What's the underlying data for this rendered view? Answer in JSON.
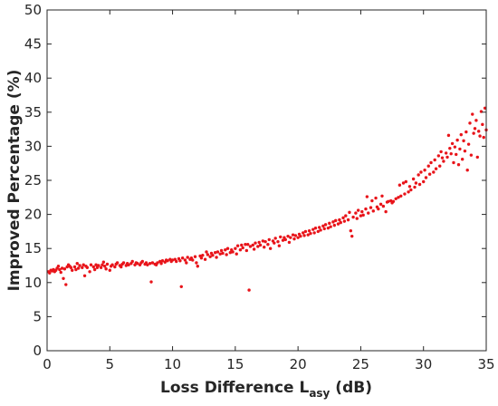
{
  "chart_data": {
    "type": "scatter",
    "xlabel_main": "Loss Difference L",
    "xlabel_sub": "asy",
    "xlabel_unit": " (dB)",
    "ylabel": "Improved Percentage (%)",
    "xlim": [
      0,
      35
    ],
    "ylim": [
      0,
      50
    ],
    "xticks": [
      0,
      5,
      10,
      15,
      20,
      25,
      30,
      35
    ],
    "yticks": [
      0,
      5,
      10,
      15,
      20,
      25,
      30,
      35,
      40,
      45,
      50
    ],
    "grid": false,
    "marker_color": "#e8141a",
    "series": [
      {
        "values": [
          [
            0.1,
            11.6
          ],
          [
            0.2,
            11.4
          ],
          [
            0.3,
            11.8
          ],
          [
            0.4,
            11.7
          ],
          [
            0.5,
            11.9
          ],
          [
            0.6,
            11.6
          ],
          [
            0.7,
            11.8
          ],
          [
            0.8,
            12.1
          ],
          [
            0.9,
            12.4
          ],
          [
            1.0,
            11.9
          ],
          [
            1.1,
            11.5
          ],
          [
            1.2,
            12.1
          ],
          [
            1.3,
            10.6
          ],
          [
            1.4,
            12.0
          ],
          [
            1.5,
            9.7
          ],
          [
            1.6,
            12.3
          ],
          [
            1.7,
            12.6
          ],
          [
            1.8,
            12.4
          ],
          [
            1.9,
            12.2
          ],
          [
            2.0,
            11.8
          ],
          [
            2.2,
            12.3
          ],
          [
            2.3,
            11.9
          ],
          [
            2.4,
            12.8
          ],
          [
            2.5,
            12.1
          ],
          [
            2.6,
            12.5
          ],
          [
            2.8,
            12.2
          ],
          [
            2.9,
            12.6
          ],
          [
            3.0,
            11.0
          ],
          [
            3.1,
            12.4
          ],
          [
            3.2,
            12.2
          ],
          [
            3.4,
            11.6
          ],
          [
            3.5,
            12.6
          ],
          [
            3.7,
            12.3
          ],
          [
            3.8,
            11.9
          ],
          [
            3.9,
            12.6
          ],
          [
            4.0,
            12.2
          ],
          [
            4.1,
            12.5
          ],
          [
            4.3,
            12.2
          ],
          [
            4.4,
            12.6
          ],
          [
            4.5,
            13.0
          ],
          [
            4.6,
            12.4
          ],
          [
            4.7,
            12.0
          ],
          [
            4.8,
            12.7
          ],
          [
            5.0,
            11.8
          ],
          [
            5.1,
            12.4
          ],
          [
            5.2,
            12.6
          ],
          [
            5.4,
            12.3
          ],
          [
            5.5,
            12.7
          ],
          [
            5.6,
            12.9
          ],
          [
            5.8,
            12.5
          ],
          [
            5.9,
            12.3
          ],
          [
            6.0,
            12.7
          ],
          [
            6.1,
            12.9
          ],
          [
            6.3,
            12.5
          ],
          [
            6.4,
            12.8
          ],
          [
            6.5,
            12.6
          ],
          [
            6.7,
            12.8
          ],
          [
            6.8,
            13.1
          ],
          [
            7.0,
            12.6
          ],
          [
            7.1,
            12.9
          ],
          [
            7.2,
            12.8
          ],
          [
            7.4,
            12.6
          ],
          [
            7.5,
            12.9
          ],
          [
            7.6,
            13.1
          ],
          [
            7.8,
            12.7
          ],
          [
            7.9,
            12.9
          ],
          [
            8.0,
            12.6
          ],
          [
            8.2,
            12.8
          ],
          [
            8.3,
            10.1
          ],
          [
            8.4,
            12.9
          ],
          [
            8.6,
            12.7
          ],
          [
            8.7,
            12.6
          ],
          [
            8.8,
            12.9
          ],
          [
            9.0,
            13.1
          ],
          [
            9.1,
            12.8
          ],
          [
            9.2,
            13.2
          ],
          [
            9.4,
            13.0
          ],
          [
            9.5,
            13.3
          ],
          [
            9.6,
            13.2
          ],
          [
            9.8,
            13.4
          ],
          [
            9.9,
            13.1
          ],
          [
            10.0,
            13.3
          ],
          [
            10.2,
            13.4
          ],
          [
            10.3,
            13.1
          ],
          [
            10.5,
            13.5
          ],
          [
            10.6,
            13.2
          ],
          [
            10.7,
            9.4
          ],
          [
            10.8,
            13.6
          ],
          [
            11.0,
            13.3
          ],
          [
            11.1,
            12.9
          ],
          [
            11.2,
            13.7
          ],
          [
            11.4,
            13.4
          ],
          [
            11.5,
            13.6
          ],
          [
            11.6,
            13.3
          ],
          [
            11.8,
            13.8
          ],
          [
            11.9,
            12.9
          ],
          [
            12.0,
            12.4
          ],
          [
            12.2,
            13.9
          ],
          [
            12.3,
            13.6
          ],
          [
            12.4,
            14.0
          ],
          [
            12.6,
            13.4
          ],
          [
            12.7,
            14.5
          ],
          [
            12.8,
            14.1
          ],
          [
            13.0,
            13.8
          ],
          [
            13.1,
            14.3
          ],
          [
            13.2,
            14.0
          ],
          [
            13.4,
            14.4
          ],
          [
            13.5,
            13.7
          ],
          [
            13.6,
            14.5
          ],
          [
            13.8,
            14.2
          ],
          [
            13.9,
            14.7
          ],
          [
            14.0,
            14.3
          ],
          [
            14.2,
            14.8
          ],
          [
            14.3,
            14.1
          ],
          [
            14.4,
            15.0
          ],
          [
            14.6,
            14.4
          ],
          [
            14.7,
            14.8
          ],
          [
            14.8,
            14.5
          ],
          [
            15.0,
            15.0
          ],
          [
            15.1,
            14.2
          ],
          [
            15.2,
            15.4
          ],
          [
            15.4,
            14.8
          ],
          [
            15.5,
            15.5
          ],
          [
            15.6,
            15.1
          ],
          [
            15.8,
            15.6
          ],
          [
            15.9,
            14.7
          ],
          [
            16.0,
            15.6
          ],
          [
            16.1,
            8.9
          ],
          [
            16.2,
            15.3
          ],
          [
            16.4,
            15.5
          ],
          [
            16.5,
            14.9
          ],
          [
            16.6,
            15.8
          ],
          [
            16.8,
            15.3
          ],
          [
            16.9,
            15.9
          ],
          [
            17.0,
            15.5
          ],
          [
            17.2,
            16.1
          ],
          [
            17.3,
            15.2
          ],
          [
            17.4,
            16.0
          ],
          [
            17.6,
            15.6
          ],
          [
            17.7,
            16.3
          ],
          [
            17.8,
            15.0
          ],
          [
            18.0,
            16.1
          ],
          [
            18.1,
            15.8
          ],
          [
            18.2,
            16.5
          ],
          [
            18.4,
            16.0
          ],
          [
            18.5,
            15.4
          ],
          [
            18.6,
            16.7
          ],
          [
            18.8,
            16.2
          ],
          [
            18.9,
            16.6
          ],
          [
            19.0,
            16.3
          ],
          [
            19.2,
            16.8
          ],
          [
            19.3,
            15.9
          ],
          [
            19.4,
            16.6
          ],
          [
            19.6,
            17.0
          ],
          [
            19.7,
            16.4
          ],
          [
            19.8,
            16.9
          ],
          [
            20.0,
            16.6
          ],
          [
            20.1,
            17.1
          ],
          [
            20.2,
            16.8
          ],
          [
            20.4,
            17.3
          ],
          [
            20.5,
            16.9
          ],
          [
            20.6,
            17.5
          ],
          [
            20.8,
            17.0
          ],
          [
            20.9,
            17.6
          ],
          [
            21.0,
            17.2
          ],
          [
            21.2,
            17.8
          ],
          [
            21.3,
            17.3
          ],
          [
            21.4,
            18.0
          ],
          [
            21.6,
            17.5
          ],
          [
            21.7,
            18.1
          ],
          [
            21.8,
            17.7
          ],
          [
            22.0,
            18.3
          ],
          [
            22.1,
            17.9
          ],
          [
            22.2,
            18.5
          ],
          [
            22.4,
            18.0
          ],
          [
            22.5,
            18.7
          ],
          [
            22.6,
            18.2
          ],
          [
            22.8,
            18.9
          ],
          [
            22.9,
            18.4
          ],
          [
            23.0,
            19.1
          ],
          [
            23.2,
            18.6
          ],
          [
            23.3,
            19.2
          ],
          [
            23.4,
            18.8
          ],
          [
            23.6,
            19.5
          ],
          [
            23.7,
            19.0
          ],
          [
            23.8,
            19.8
          ],
          [
            24.0,
            19.2
          ],
          [
            24.1,
            20.3
          ],
          [
            24.2,
            17.6
          ],
          [
            24.3,
            16.8
          ],
          [
            24.4,
            19.6
          ],
          [
            24.6,
            20.2
          ],
          [
            24.7,
            19.4
          ],
          [
            24.8,
            20.6
          ],
          [
            25.0,
            19.8
          ],
          [
            25.1,
            20.4
          ],
          [
            25.2,
            19.9
          ],
          [
            25.4,
            20.8
          ],
          [
            25.5,
            22.6
          ],
          [
            25.6,
            20.2
          ],
          [
            25.8,
            21.0
          ],
          [
            25.9,
            22.0
          ],
          [
            26.0,
            20.5
          ],
          [
            26.2,
            22.4
          ],
          [
            26.3,
            21.1
          ],
          [
            26.4,
            20.8
          ],
          [
            26.6,
            21.5
          ],
          [
            26.7,
            22.7
          ],
          [
            26.8,
            21.2
          ],
          [
            27.0,
            20.4
          ],
          [
            27.1,
            21.8
          ],
          [
            27.2,
            21.9
          ],
          [
            27.4,
            22.0
          ],
          [
            27.5,
            21.7
          ],
          [
            27.6,
            21.9
          ],
          [
            27.8,
            22.3
          ],
          [
            28.0,
            22.5
          ],
          [
            28.1,
            24.3
          ],
          [
            28.2,
            22.7
          ],
          [
            28.4,
            24.6
          ],
          [
            28.5,
            23.0
          ],
          [
            28.6,
            24.8
          ],
          [
            28.8,
            23.3
          ],
          [
            28.9,
            24.1
          ],
          [
            29.0,
            23.6
          ],
          [
            29.2,
            25.2
          ],
          [
            29.3,
            24.0
          ],
          [
            29.4,
            24.6
          ],
          [
            29.6,
            25.8
          ],
          [
            29.7,
            24.4
          ],
          [
            29.8,
            26.2
          ],
          [
            30.0,
            24.8
          ],
          [
            30.1,
            26.5
          ],
          [
            30.2,
            25.4
          ],
          [
            30.4,
            27.1
          ],
          [
            30.5,
            25.9
          ],
          [
            30.6,
            27.6
          ],
          [
            30.8,
            26.2
          ],
          [
            30.9,
            28.0
          ],
          [
            31.0,
            26.7
          ],
          [
            31.2,
            28.6
          ],
          [
            31.3,
            27.1
          ],
          [
            31.4,
            29.2
          ],
          [
            31.5,
            28.3
          ],
          [
            31.6,
            27.8
          ],
          [
            31.8,
            29.0
          ],
          [
            31.9,
            28.4
          ],
          [
            32.0,
            31.6
          ],
          [
            32.1,
            29.7
          ],
          [
            32.2,
            28.9
          ],
          [
            32.3,
            30.4
          ],
          [
            32.4,
            27.6
          ],
          [
            32.5,
            29.9
          ],
          [
            32.6,
            28.8
          ],
          [
            32.7,
            30.9
          ],
          [
            32.8,
            27.3
          ],
          [
            32.9,
            29.6
          ],
          [
            33.0,
            31.7
          ],
          [
            33.1,
            28.1
          ],
          [
            33.2,
            30.8
          ],
          [
            33.3,
            29.3
          ],
          [
            33.4,
            32.1
          ],
          [
            33.5,
            26.5
          ],
          [
            33.6,
            30.3
          ],
          [
            33.7,
            33.4
          ],
          [
            33.8,
            28.7
          ],
          [
            33.9,
            34.7
          ],
          [
            34.0,
            31.9
          ],
          [
            34.1,
            32.6
          ],
          [
            34.2,
            33.8
          ],
          [
            34.3,
            28.4
          ],
          [
            34.4,
            32.2
          ],
          [
            34.5,
            31.5
          ],
          [
            34.6,
            35.1
          ],
          [
            34.7,
            33.2
          ],
          [
            34.8,
            31.3
          ],
          [
            34.9,
            35.6
          ],
          [
            35.0,
            32.4
          ]
        ]
      }
    ]
  }
}
